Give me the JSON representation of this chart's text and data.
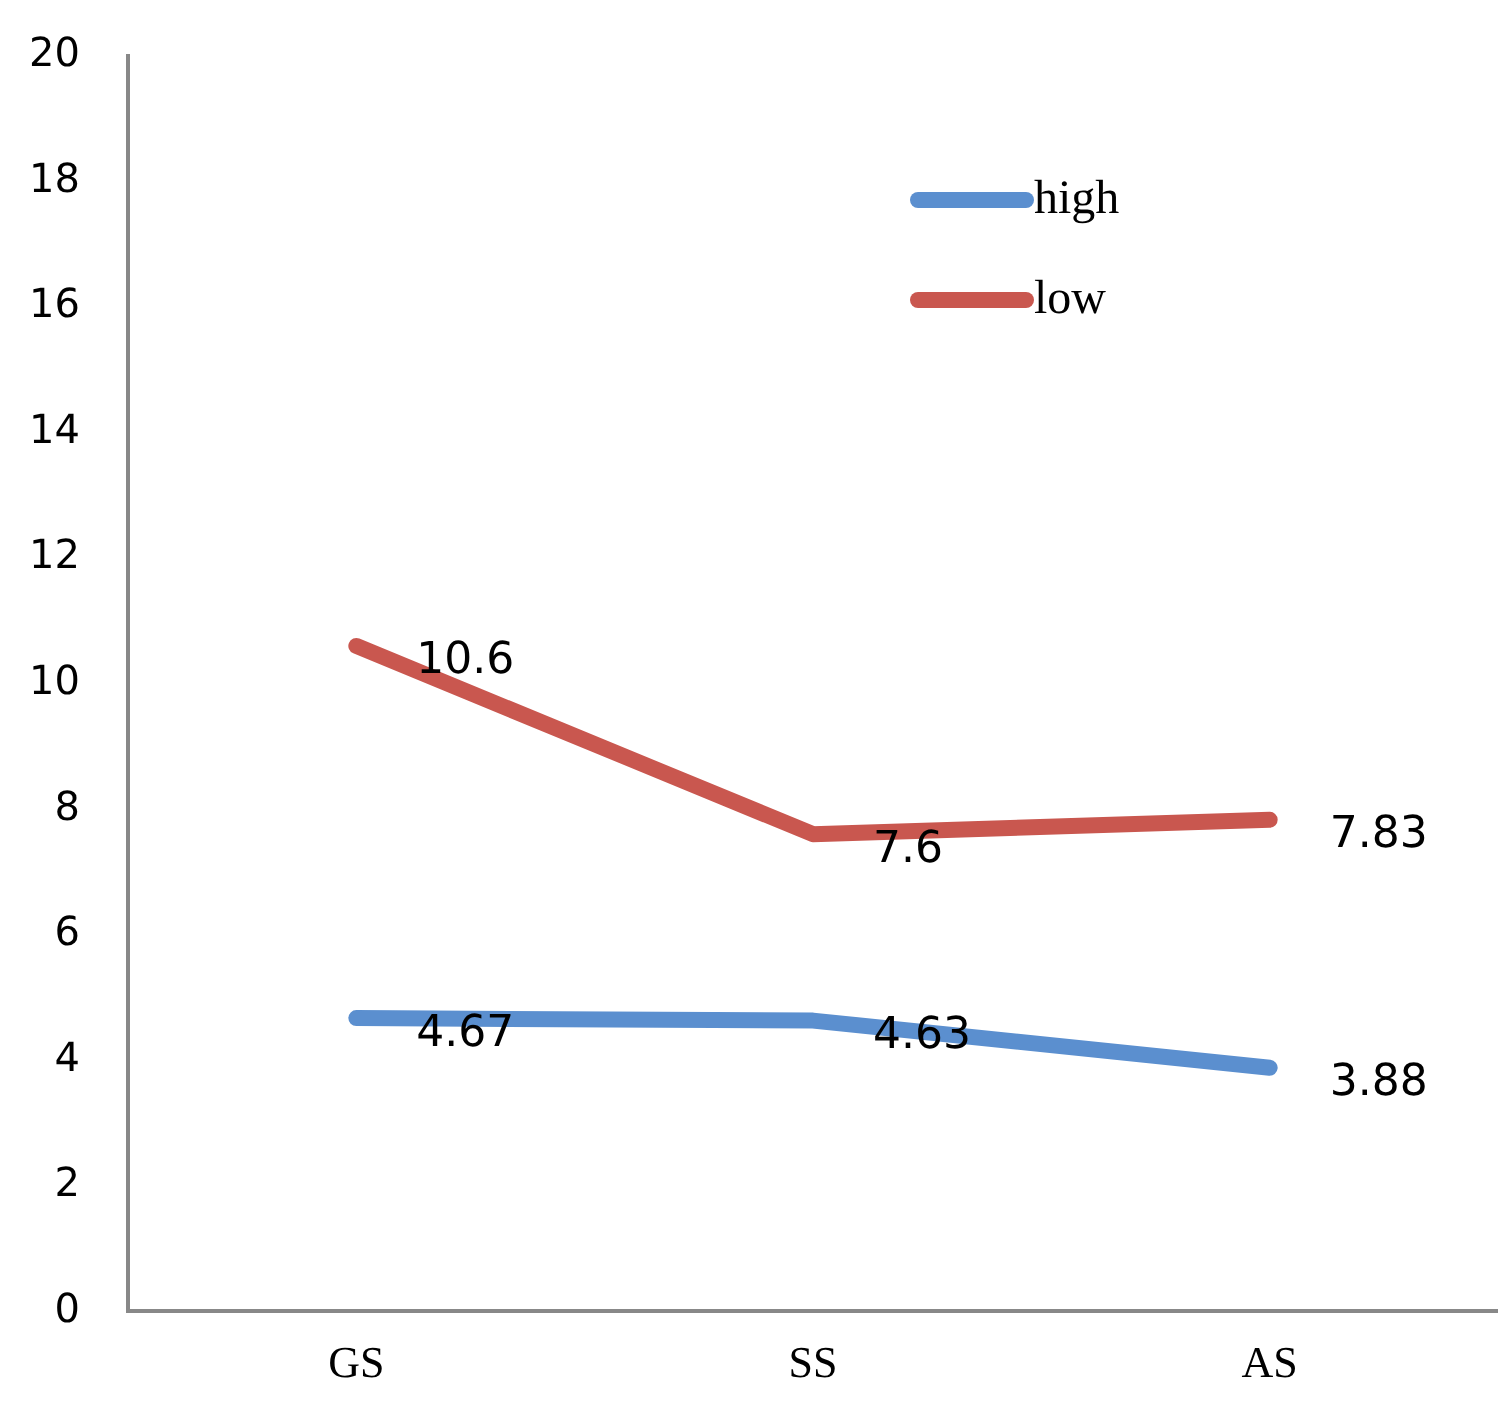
{
  "chart_data": {
    "type": "line",
    "categories": [
      "GS",
      "SS",
      "AS"
    ],
    "series": [
      {
        "name": "high",
        "color": "#5b8fcf",
        "values": [
          4.67,
          4.63,
          3.88
        ]
      },
      {
        "name": "low",
        "color": "#c9574f",
        "values": [
          10.6,
          7.6,
          7.83
        ]
      }
    ],
    "ylim": [
      0,
      20
    ],
    "yticks": [
      0,
      2,
      4,
      6,
      8,
      10,
      12,
      14,
      16,
      18,
      20
    ],
    "grid": false,
    "legend": "top right",
    "marker": "none",
    "line_style": "solid",
    "data_labels": true
  }
}
